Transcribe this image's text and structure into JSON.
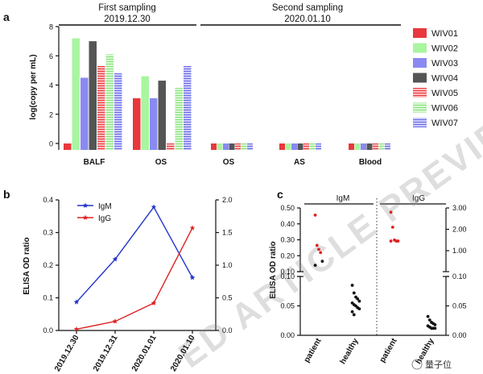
{
  "panel_labels": {
    "a": "a",
    "b": "b",
    "c": "c"
  },
  "watermark": {
    "text": "ED ARTICLE PREVIEW",
    "brand": "量子位"
  },
  "colors": {
    "WIV01": "#e8383d",
    "WIV02": "#a9f5a0",
    "WIV03": "#8a8af2",
    "WIV04": "#555555",
    "WIV05": "#e8383d",
    "WIV06": "#a9f5a0",
    "WIV07": "#8a8af2",
    "IgM": "#2233cc",
    "IgG": "#dd2222",
    "dots_patient": "#dd2222",
    "dots_healthy": "#111111"
  },
  "chart_data": [
    {
      "id": "a",
      "type": "bar",
      "ylabel": "log(copy per mL)",
      "ylim": [
        0,
        8
      ],
      "yticks": [
        "0",
        "2",
        "4",
        "6",
        "8"
      ],
      "headers": [
        {
          "line1": "First sampling",
          "line2": "2019.12.30"
        },
        {
          "line1": "Second sampling",
          "line2": "2020.01.10"
        }
      ],
      "categories": [
        "BALF",
        "OS",
        "OS",
        "AS",
        "Blood"
      ],
      "series": [
        {
          "name": "WIV01",
          "pattern": "solid",
          "values": [
            0,
            3.1,
            0,
            0,
            0
          ]
        },
        {
          "name": "WIV02",
          "pattern": "solid",
          "values": [
            7.2,
            4.6,
            0,
            0,
            0
          ]
        },
        {
          "name": "WIV03",
          "pattern": "solid",
          "values": [
            4.5,
            3.1,
            0,
            0,
            0
          ]
        },
        {
          "name": "WIV04",
          "pattern": "solid",
          "values": [
            7.0,
            4.3,
            0,
            0,
            0
          ]
        },
        {
          "name": "WIV05",
          "pattern": "hatch",
          "values": [
            5.3,
            0,
            0,
            0,
            0
          ]
        },
        {
          "name": "WIV06",
          "pattern": "hatch",
          "values": [
            6.1,
            3.8,
            0,
            0,
            0
          ]
        },
        {
          "name": "WIV07",
          "pattern": "hatch",
          "values": [
            4.8,
            5.3,
            0,
            0,
            0
          ]
        }
      ]
    },
    {
      "id": "b",
      "type": "line",
      "ylabel": "ELISA OD ratio",
      "categories": [
        "2019.12.30",
        "2019.12.31",
        "2020.01.01",
        "2020.01.10"
      ],
      "ylim_left": [
        0,
        0.4
      ],
      "yticks_left": [
        "0.0",
        "0.1",
        "0.2",
        "0.3",
        "0.4"
      ],
      "ylim_right": [
        0,
        2.0
      ],
      "yticks_right": [
        "0.0",
        "0.5",
        "1.0",
        "1.5",
        "2.0"
      ],
      "series": [
        {
          "name": "IgM",
          "axis": "left",
          "values": [
            0.087,
            0.218,
            0.378,
            0.162
          ]
        },
        {
          "name": "IgG",
          "axis": "right",
          "values": [
            0.02,
            0.14,
            0.42,
            1.57
          ]
        }
      ]
    },
    {
      "id": "c",
      "type": "scatter",
      "ylabel": "ELISA OD ratio",
      "groups": [
        {
          "header": "IgM",
          "points": [
            {
              "label": "patient",
              "values": [
                0.455,
                0.265,
                0.24,
                0.22,
                0.165,
                0.14
              ]
            },
            {
              "label": "healthy",
              "values": [
                0.085,
                0.072,
                0.065,
                0.062,
                0.058,
                0.055,
                0.052,
                0.05,
                0.047,
                0.045,
                0.04,
                0.035
              ]
            }
          ]
        },
        {
          "header": "IgG",
          "points": [
            {
              "label": "patient",
              "values": [
                2.8,
                2.1,
                1.5,
                1.45,
                1.45,
                1.45
              ]
            },
            {
              "label": "healthy",
              "values": [
                0.032,
                0.026,
                0.022,
                0.02,
                0.018,
                0.016,
                0.014,
                0.012,
                0.012,
                0.012
              ]
            }
          ]
        }
      ],
      "left_axis": {
        "upper_ticks": [
          "0.50",
          "0.40",
          "0.30",
          "0.20",
          "0.10"
        ],
        "lower_ticks": [
          "0.10",
          "0.05",
          "0.00"
        ]
      },
      "right_axis": {
        "upper_ticks": [
          "3.00",
          "2.00",
          "1.00"
        ],
        "lower_ticks": [
          "0.10",
          "0.05",
          "0.00"
        ]
      }
    }
  ]
}
